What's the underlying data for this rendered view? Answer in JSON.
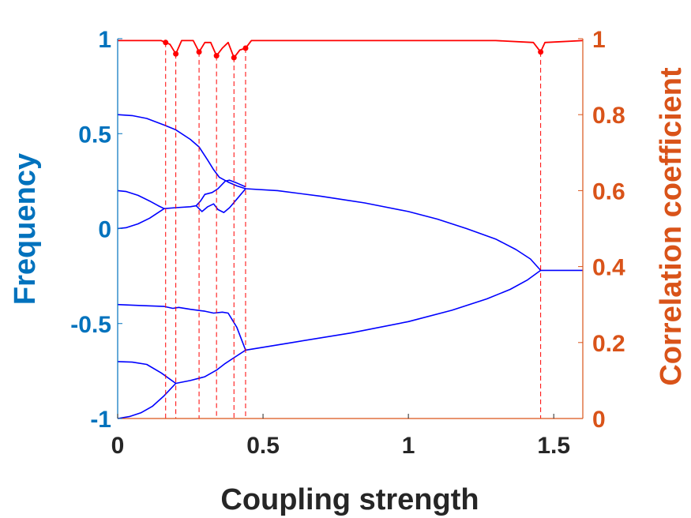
{
  "chart_data": {
    "type": "line",
    "xlabel": "Coupling strength",
    "ylabel_left": "Frequency",
    "ylabel_right": "Correlation coefficient",
    "xlim": [
      0,
      1.6
    ],
    "ylim_left": [
      -1,
      1
    ],
    "ylim_right": [
      0,
      1
    ],
    "x_ticks": [
      {
        "value": 0,
        "label": "0"
      },
      {
        "value": 0.5,
        "label": "0.5"
      },
      {
        "value": 1,
        "label": "1"
      },
      {
        "value": 1.5,
        "label": "1.5"
      }
    ],
    "y_left_ticks": [
      {
        "value": -1,
        "label": "-1"
      },
      {
        "value": -0.5,
        "label": "-0.5"
      },
      {
        "value": 0,
        "label": "0"
      },
      {
        "value": 0.5,
        "label": "0.5"
      },
      {
        "value": 1,
        "label": "1"
      }
    ],
    "y_right_ticks": [
      {
        "value": 0,
        "label": "0"
      },
      {
        "value": 0.2,
        "label": "0.2"
      },
      {
        "value": 0.4,
        "label": "0.4"
      },
      {
        "value": 0.6,
        "label": "0.6"
      },
      {
        "value": 0.8,
        "label": "0.8"
      },
      {
        "value": 1,
        "label": "1"
      }
    ],
    "grid": false,
    "colors": {
      "left_axis": "#0072bd",
      "right_axis": "#d95319",
      "frequency": "#0000ff",
      "correlation": "#ff0000"
    },
    "frequency_series": [
      {
        "points": [
          [
            0,
            0.6
          ],
          [
            0.05,
            0.595
          ],
          [
            0.1,
            0.58
          ],
          [
            0.16,
            0.545
          ],
          [
            0.2,
            0.52
          ],
          [
            0.25,
            0.47
          ],
          [
            0.28,
            0.43
          ],
          [
            0.31,
            0.36
          ],
          [
            0.33,
            0.31
          ],
          [
            0.35,
            0.27
          ],
          [
            0.38,
            0.245
          ],
          [
            0.41,
            0.225
          ],
          [
            0.44,
            0.21
          ]
        ]
      },
      {
        "points": [
          [
            0,
            0.2
          ],
          [
            0.03,
            0.195
          ],
          [
            0.07,
            0.175
          ],
          [
            0.11,
            0.145
          ],
          [
            0.14,
            0.12
          ],
          [
            0.16,
            0.105
          ],
          [
            0.2,
            0.11
          ],
          [
            0.25,
            0.115
          ],
          [
            0.27,
            0.12
          ],
          [
            0.285,
            0.145
          ],
          [
            0.3,
            0.18
          ],
          [
            0.325,
            0.19
          ],
          [
            0.345,
            0.21
          ],
          [
            0.37,
            0.25
          ],
          [
            0.385,
            0.255
          ],
          [
            0.41,
            0.24
          ],
          [
            0.44,
            0.22
          ]
        ]
      },
      {
        "points": [
          [
            0,
            0
          ],
          [
            0.03,
            0.005
          ],
          [
            0.07,
            0.025
          ],
          [
            0.11,
            0.055
          ],
          [
            0.14,
            0.085
          ],
          [
            0.16,
            0.105
          ]
        ]
      },
      {
        "points": [
          [
            0.27,
            0.12
          ],
          [
            0.29,
            0.09
          ],
          [
            0.31,
            0.115
          ],
          [
            0.33,
            0.13
          ],
          [
            0.345,
            0.1
          ],
          [
            0.365,
            0.085
          ],
          [
            0.385,
            0.11
          ],
          [
            0.41,
            0.155
          ],
          [
            0.44,
            0.21
          ]
        ]
      },
      {
        "points": [
          [
            0.44,
            0.21
          ],
          [
            0.55,
            0.2
          ],
          [
            0.7,
            0.17
          ],
          [
            0.85,
            0.135
          ],
          [
            1.0,
            0.09
          ],
          [
            1.1,
            0.05
          ],
          [
            1.2,
            0.0
          ],
          [
            1.3,
            -0.055
          ],
          [
            1.37,
            -0.11
          ],
          [
            1.42,
            -0.16
          ],
          [
            1.455,
            -0.22
          ],
          [
            1.6,
            -0.22
          ]
        ]
      },
      {
        "points": [
          [
            0,
            -0.4
          ],
          [
            0.08,
            -0.405
          ],
          [
            0.16,
            -0.41
          ],
          [
            0.19,
            -0.42
          ],
          [
            0.21,
            -0.415
          ],
          [
            0.25,
            -0.425
          ],
          [
            0.3,
            -0.435
          ],
          [
            0.33,
            -0.445
          ],
          [
            0.36,
            -0.44
          ],
          [
            0.38,
            -0.445
          ],
          [
            0.41,
            -0.52
          ],
          [
            0.44,
            -0.64
          ]
        ]
      },
      {
        "points": [
          [
            0,
            -0.7
          ],
          [
            0.05,
            -0.703
          ],
          [
            0.1,
            -0.715
          ],
          [
            0.15,
            -0.76
          ],
          [
            0.2,
            -0.815
          ],
          [
            0.25,
            -0.8
          ],
          [
            0.3,
            -0.78
          ],
          [
            0.34,
            -0.745
          ],
          [
            0.37,
            -0.71
          ],
          [
            0.4,
            -0.68
          ],
          [
            0.44,
            -0.64
          ]
        ]
      },
      {
        "points": [
          [
            0,
            -1.0
          ],
          [
            0.04,
            -0.99
          ],
          [
            0.08,
            -0.97
          ],
          [
            0.12,
            -0.935
          ],
          [
            0.16,
            -0.88
          ],
          [
            0.2,
            -0.815
          ]
        ]
      },
      {
        "points": [
          [
            0.44,
            -0.64
          ],
          [
            0.6,
            -0.6
          ],
          [
            0.8,
            -0.55
          ],
          [
            1.0,
            -0.49
          ],
          [
            1.15,
            -0.43
          ],
          [
            1.27,
            -0.37
          ],
          [
            1.35,
            -0.32
          ],
          [
            1.41,
            -0.27
          ],
          [
            1.455,
            -0.22
          ]
        ]
      }
    ],
    "correlation_series": {
      "points": [
        [
          0,
          0.995
        ],
        [
          0.1,
          0.995
        ],
        [
          0.15,
          0.995
        ],
        [
          0.165,
          0.99
        ],
        [
          0.18,
          0.985
        ],
        [
          0.2,
          0.96
        ],
        [
          0.22,
          0.995
        ],
        [
          0.26,
          0.995
        ],
        [
          0.28,
          0.965
        ],
        [
          0.3,
          0.99
        ],
        [
          0.32,
          0.99
        ],
        [
          0.34,
          0.955
        ],
        [
          0.36,
          0.975
        ],
        [
          0.38,
          0.99
        ],
        [
          0.4,
          0.95
        ],
        [
          0.42,
          0.97
        ],
        [
          0.44,
          0.975
        ],
        [
          0.46,
          0.995
        ],
        [
          0.5,
          0.995
        ],
        [
          1.0,
          0.995
        ],
        [
          1.3,
          0.995
        ],
        [
          1.43,
          0.99
        ],
        [
          1.455,
          0.965
        ],
        [
          1.47,
          0.99
        ],
        [
          1.6,
          0.995
        ]
      ]
    },
    "transition_markers": [
      {
        "x": 0.165,
        "corr": 0.99
      },
      {
        "x": 0.2,
        "corr": 0.96
      },
      {
        "x": 0.28,
        "corr": 0.965
      },
      {
        "x": 0.34,
        "corr": 0.955
      },
      {
        "x": 0.4,
        "corr": 0.95
      },
      {
        "x": 0.44,
        "corr": 0.975
      },
      {
        "x": 1.455,
        "corr": 0.965
      }
    ]
  }
}
